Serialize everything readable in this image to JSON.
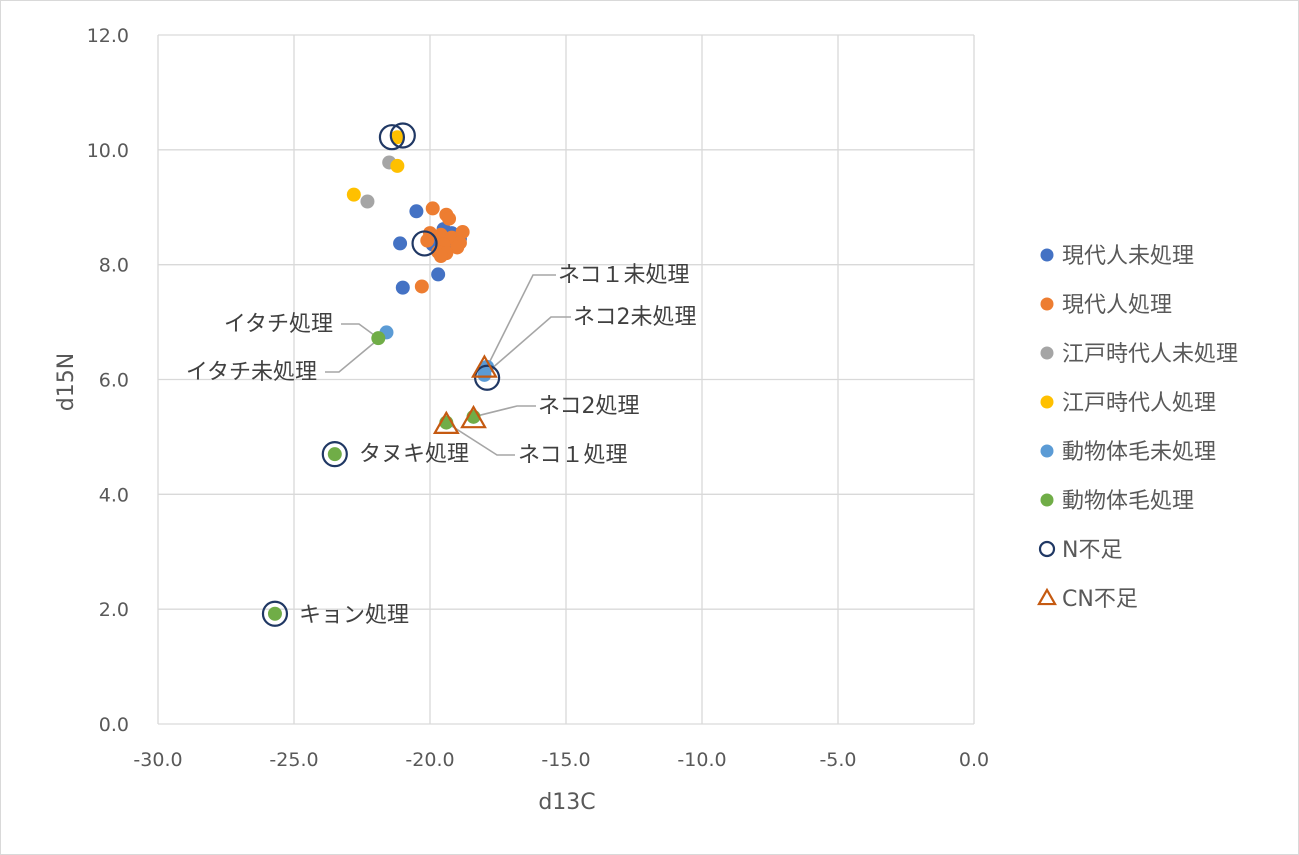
{
  "chart_data": {
    "type": "scatter",
    "xlabel": "d13C",
    "ylabel": "d15N",
    "xlim": [
      -30,
      0
    ],
    "ylim": [
      0,
      12
    ],
    "x_ticks": [
      "-30.0",
      "-25.0",
      "-20.0",
      "-15.0",
      "-10.0",
      "-5.0",
      "0.0"
    ],
    "y_ticks": [
      "0.0",
      "2.0",
      "4.0",
      "6.0",
      "8.0",
      "10.0",
      "12.0"
    ],
    "grid": true,
    "legend_position": "right",
    "series": [
      {
        "name": "現代人未処理",
        "color": "#4472C4",
        "marker": "circle-filled",
        "points": [
          {
            "x": -20.5,
            "y": 8.93
          },
          {
            "x": -21.1,
            "y": 8.37
          },
          {
            "x": -21.0,
            "y": 7.6
          },
          {
            "x": -19.7,
            "y": 7.83
          },
          {
            "x": -19.5,
            "y": 8.62
          },
          {
            "x": -19.2,
            "y": 8.55
          },
          {
            "x": -18.9,
            "y": 8.45
          },
          {
            "x": -19.3,
            "y": 8.4
          },
          {
            "x": -19.9,
            "y": 8.35
          }
        ]
      },
      {
        "name": "現代人処理",
        "color": "#ED7D31",
        "marker": "circle-filled",
        "points": [
          {
            "x": -19.9,
            "y": 8.98
          },
          {
            "x": -19.4,
            "y": 8.87
          },
          {
            "x": -19.3,
            "y": 8.8
          },
          {
            "x": -18.8,
            "y": 8.57
          },
          {
            "x": -20.0,
            "y": 8.55
          },
          {
            "x": -19.6,
            "y": 8.52
          },
          {
            "x": -19.2,
            "y": 8.47
          },
          {
            "x": -18.9,
            "y": 8.38
          },
          {
            "x": -19.5,
            "y": 8.35
          },
          {
            "x": -20.1,
            "y": 8.42
          },
          {
            "x": -19.0,
            "y": 8.3
          },
          {
            "x": -19.7,
            "y": 8.22
          },
          {
            "x": -19.4,
            "y": 8.2
          },
          {
            "x": -19.6,
            "y": 8.15
          },
          {
            "x": -20.3,
            "y": 7.62
          }
        ]
      },
      {
        "name": "江戸時代人未処理",
        "color": "#A5A5A5",
        "marker": "circle-filled",
        "points": [
          {
            "x": -21.5,
            "y": 9.78
          },
          {
            "x": -22.3,
            "y": 9.1
          }
        ]
      },
      {
        "name": "江戸時代人処理",
        "color": "#FFC000",
        "marker": "circle-filled",
        "points": [
          {
            "x": -21.2,
            "y": 9.72
          },
          {
            "x": -22.8,
            "y": 9.22
          },
          {
            "x": -21.2,
            "y": 10.22
          }
        ]
      },
      {
        "name": "動物体毛未処理",
        "color": "#5B9BD5",
        "marker": "circle-filled",
        "points": [
          {
            "x": -21.6,
            "y": 6.82
          },
          {
            "x": -17.9,
            "y": 6.22
          },
          {
            "x": -18.0,
            "y": 6.08
          }
        ]
      },
      {
        "name": "動物体毛処理",
        "color": "#70AD47",
        "marker": "circle-filled",
        "points": [
          {
            "x": -21.9,
            "y": 6.72
          },
          {
            "x": -23.5,
            "y": 4.7
          },
          {
            "x": -25.7,
            "y": 1.92
          },
          {
            "x": -19.4,
            "y": 5.25
          },
          {
            "x": -18.4,
            "y": 5.35
          }
        ]
      },
      {
        "name": "N不足",
        "color": "#203864",
        "marker": "circle-open",
        "points": [
          {
            "x": -21.4,
            "y": 10.22
          },
          {
            "x": -21.0,
            "y": 10.25
          },
          {
            "x": -20.2,
            "y": 8.37
          },
          {
            "x": -17.9,
            "y": 6.03
          },
          {
            "x": -23.5,
            "y": 4.7
          },
          {
            "x": -25.7,
            "y": 1.92
          }
        ]
      },
      {
        "name": "CN不足",
        "color": "#C55A11",
        "marker": "triangle-open",
        "points": [
          {
            "x": -18.0,
            "y": 6.2
          },
          {
            "x": -19.4,
            "y": 5.22
          },
          {
            "x": -18.4,
            "y": 5.32
          }
        ]
      }
    ],
    "annotations": [
      {
        "text": "ネコ１未処理",
        "x": -17.9,
        "y": 6.22
      },
      {
        "text": "ネコ2未処理",
        "x": -18.0,
        "y": 6.08
      },
      {
        "text": "イタチ処理",
        "x": -21.9,
        "y": 6.72
      },
      {
        "text": "イタチ未処理",
        "x": -21.6,
        "y": 6.82
      },
      {
        "text": "ネコ2処理",
        "x": -18.4,
        "y": 5.35
      },
      {
        "text": "タヌキ処理",
        "x": -23.5,
        "y": 4.7
      },
      {
        "text": "ネコ１処理",
        "x": -19.4,
        "y": 5.25
      },
      {
        "text": "キョン処理",
        "x": -25.7,
        "y": 1.92
      }
    ]
  }
}
